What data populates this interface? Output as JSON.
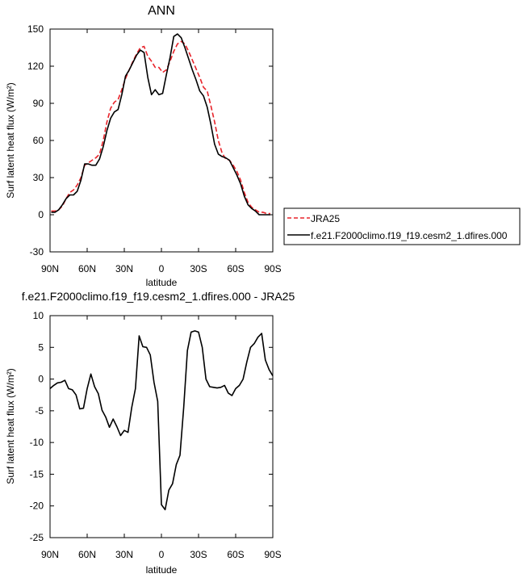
{
  "chart_data": [
    {
      "type": "line",
      "title": "ANN",
      "xlabel": "latitude",
      "ylabel": "Surf latent heat flux (W/m²)",
      "xlim": [
        90,
        -90
      ],
      "ylim": [
        -30,
        150
      ],
      "x_tick_values": [
        90,
        60,
        30,
        0,
        -30,
        -60,
        -90
      ],
      "x_tick_labels": [
        "90N",
        "60N",
        "30N",
        "0",
        "30S",
        "60S",
        "90S"
      ],
      "y_ticks": [
        -30,
        0,
        30,
        60,
        90,
        120,
        150
      ],
      "legend": {
        "placement": "right-outside",
        "entries": [
          "JRA25",
          "f.e21.F2000climo.f19_f19.cesm2_1.dfires.000"
        ]
      },
      "series": [
        {
          "name": "JRA25",
          "color": "#e8232a",
          "dash": true,
          "x": [
            89,
            86,
            83,
            80,
            77,
            74,
            71,
            68,
            65,
            62,
            59,
            56,
            53,
            50,
            47,
            44,
            41,
            38,
            35,
            32,
            29,
            26,
            23,
            20,
            17,
            14,
            11,
            8,
            5,
            2,
            -1,
            -4,
            -7,
            -10,
            -13,
            -16,
            -19,
            -22,
            -25,
            -28,
            -31,
            -34,
            -37,
            -40,
            -43,
            -46,
            -49,
            -52,
            -55,
            -58,
            -61,
            -64,
            -67,
            -70,
            -73,
            -76,
            -79,
            -82,
            -85,
            -88
          ],
          "y": [
            3,
            3,
            4,
            7,
            13,
            18,
            20,
            24,
            30,
            40,
            42,
            44,
            46,
            49,
            60,
            75,
            86,
            91,
            93,
            101,
            110,
            117,
            124,
            130,
            135,
            136,
            128,
            124,
            119,
            119,
            115,
            117,
            124,
            132,
            138,
            140,
            138,
            132,
            125,
            118,
            111,
            103,
            100,
            88,
            75,
            60,
            50,
            45,
            44,
            40,
            35,
            28,
            18,
            10,
            6,
            4,
            2,
            2,
            1,
            1
          ]
        },
        {
          "name": "f.e21.F2000climo.f19_f19.cesm2_1.dfires.000",
          "color": "#000000",
          "dash": false,
          "x": [
            89,
            86,
            83,
            80,
            77,
            74,
            71,
            68,
            65,
            62,
            59,
            56,
            53,
            50,
            47,
            44,
            41,
            38,
            35,
            32,
            29,
            26,
            23,
            20,
            17,
            14,
            11,
            8,
            5,
            2,
            -1,
            -4,
            -7,
            -10,
            -13,
            -16,
            -19,
            -22,
            -25,
            -28,
            -31,
            -34,
            -37,
            -40,
            -43,
            -46,
            -49,
            -52,
            -55,
            -58,
            -61,
            -64,
            -67,
            -70,
            -73,
            -76,
            -79,
            -82,
            -85,
            -88
          ],
          "y": [
            2,
            2,
            4,
            8,
            13,
            16,
            16,
            19,
            28,
            41,
            41,
            40,
            40,
            45,
            55,
            68,
            78,
            83,
            85,
            97,
            112,
            117,
            123,
            129,
            133,
            131,
            111,
            97,
            101,
            97,
            98,
            113,
            127,
            144,
            146,
            143,
            135,
            126,
            117,
            109,
            100,
            96,
            87,
            73,
            57,
            49,
            47,
            46,
            44,
            38,
            32,
            25,
            15,
            8,
            5,
            3,
            0,
            0,
            0,
            0
          ]
        }
      ]
    },
    {
      "type": "line",
      "title": "f.e21.F2000climo.f19_f19.cesm2_1.dfires.000 - JRA25",
      "xlabel": "latitude",
      "ylabel": "Surf latent heat flux (W/m²)",
      "xlim": [
        90,
        -90
      ],
      "ylim": [
        -25,
        10
      ],
      "x_tick_values": [
        90,
        60,
        30,
        0,
        -30,
        -60,
        -90
      ],
      "x_tick_labels": [
        "90N",
        "60N",
        "30N",
        "0",
        "30S",
        "60S",
        "90S"
      ],
      "y_ticks": [
        -25,
        -20,
        -15,
        -10,
        -5,
        0,
        5,
        10
      ],
      "series": [
        {
          "color": "#000000",
          "dash": false,
          "x": [
            90,
            87,
            84,
            81,
            78,
            75,
            72,
            69,
            66,
            63,
            60,
            57,
            54,
            51,
            48,
            45,
            42,
            39,
            36,
            33,
            30,
            27,
            24,
            21,
            18,
            15,
            12,
            9,
            6,
            3,
            0,
            -3,
            -6,
            -9,
            -12,
            -15,
            -18,
            -21,
            -24,
            -27,
            -30,
            -33,
            -36,
            -39,
            -42,
            -45,
            -48,
            -51,
            -54,
            -57,
            -60,
            -63,
            -66,
            -69,
            -72,
            -75,
            -78,
            -81,
            -84,
            -87,
            -90
          ],
          "y": [
            -1.5,
            -1,
            -0.6,
            -0.5,
            -0.2,
            -1.5,
            -1.7,
            -2.5,
            -4.7,
            -4.6,
            -1.5,
            0.8,
            -1.2,
            -2.3,
            -4.9,
            -6,
            -7.6,
            -6.3,
            -7.5,
            -8.9,
            -8.1,
            -8.4,
            -4.5,
            -1.5,
            6.8,
            5.1,
            5,
            3.8,
            -0.5,
            -3.5,
            -19.8,
            -20.6,
            -17.5,
            -16.5,
            -13.5,
            -12,
            -4.5,
            4.5,
            7.4,
            7.6,
            7.4,
            5,
            0,
            -1.2,
            -1.3,
            -1.4,
            -1.3,
            -1,
            -2.2,
            -2.6,
            -1.5,
            -1,
            0,
            2.7,
            5,
            5.6,
            6.6,
            7.2,
            3,
            1.5,
            0.5
          ]
        }
      ]
    }
  ]
}
